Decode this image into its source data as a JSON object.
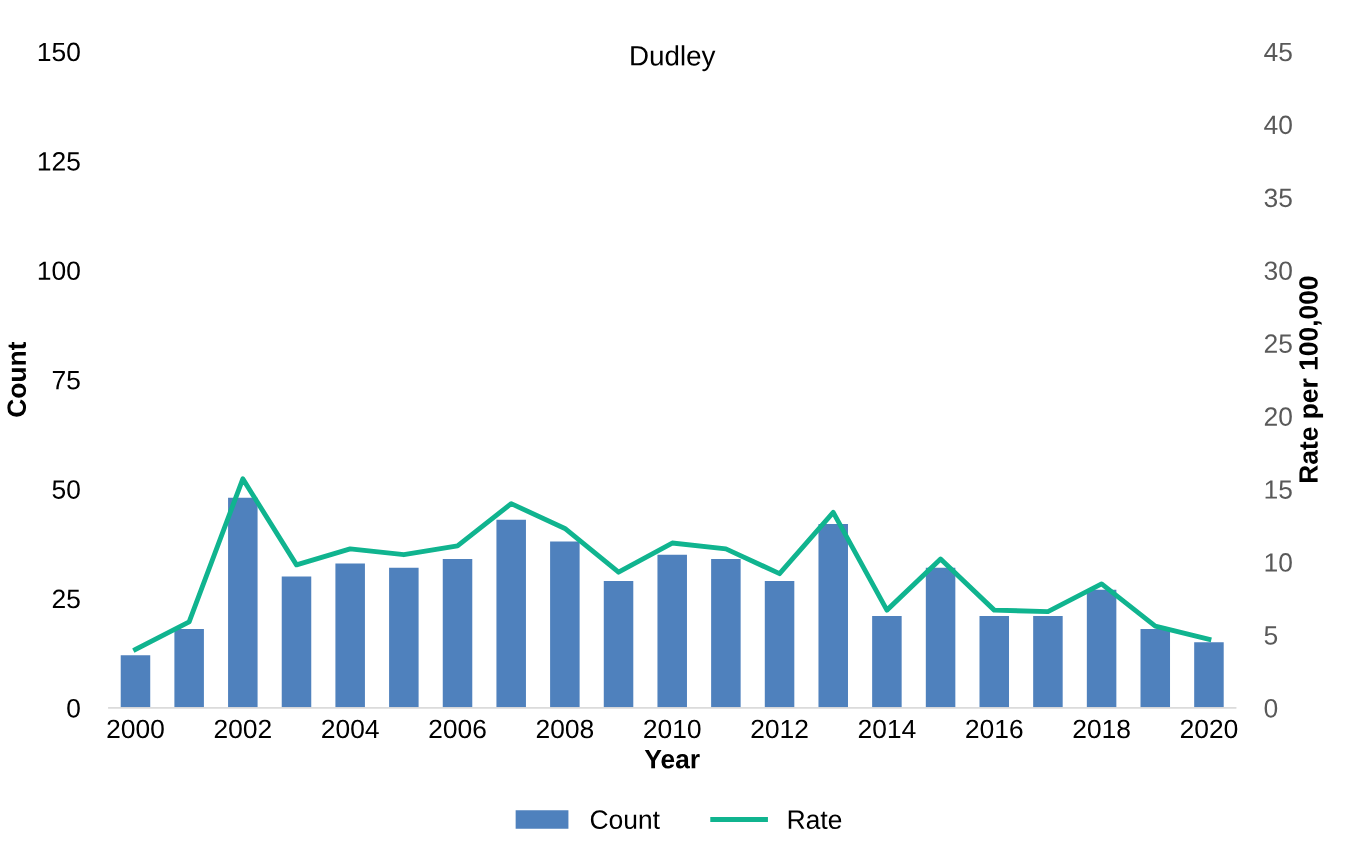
{
  "chart_data": {
    "type": "bar",
    "title": "Dudley",
    "xlabel": "Year",
    "ylabel": "Count",
    "y2label": "Rate per 100,000",
    "categories": [
      "2000",
      null,
      "2002",
      null,
      "2004",
      null,
      "2006",
      null,
      "2008",
      null,
      "2010",
      null,
      "2012",
      null,
      "2014",
      null,
      "2016",
      null,
      "2018",
      null,
      "2020"
    ],
    "series": [
      {
        "name": "Count",
        "color": "#4f81bd",
        "values": [
          12,
          18,
          48,
          30,
          33,
          32,
          34,
          43,
          38,
          29,
          35,
          34,
          29,
          42,
          21,
          32,
          21,
          21,
          27,
          18,
          15
        ]
      },
      {
        "name": "Rate",
        "type": "line",
        "axis": "y2",
        "color": "#10b48f",
        "values": [
          4.0,
          5.9,
          15.7,
          9.8,
          10.9,
          10.5,
          11.1,
          14.0,
          12.3,
          9.3,
          11.3,
          10.9,
          9.2,
          13.4,
          6.7,
          10.2,
          6.7,
          6.6,
          8.5,
          5.6,
          4.7
        ]
      }
    ],
    "ylim": [
      0,
      150
    ],
    "yticks": [
      0,
      25,
      50,
      75,
      100,
      125,
      150
    ],
    "y2lim": [
      0,
      45
    ],
    "y2ticks": [
      0,
      5,
      10,
      15,
      20,
      25,
      30,
      35,
      40,
      45
    ],
    "grid": false,
    "legend": "bottom",
    "marker": "none",
    "line_style": "solid"
  }
}
